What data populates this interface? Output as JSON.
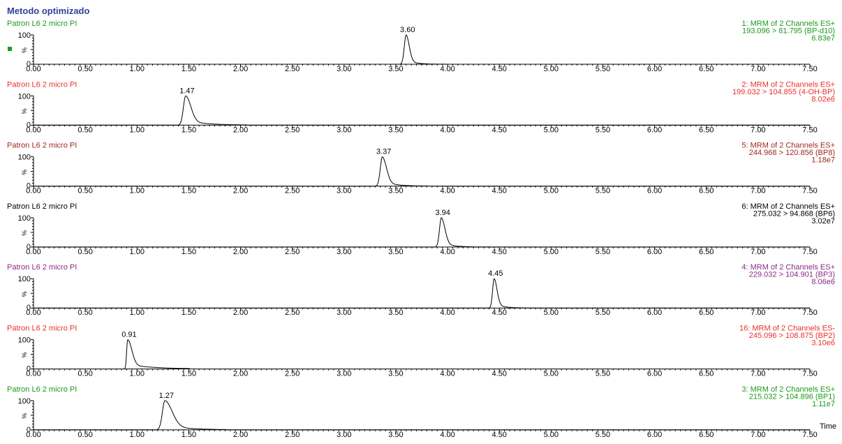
{
  "title": "Metodo optimizado",
  "colors": {
    "axis": "#000000",
    "trace": "#000000",
    "green": "#1a9a1a",
    "red": "#e8302a",
    "darkred": "#a0281e",
    "black": "#000000",
    "purple": "#8a2a86",
    "marker": "#1a9a1a"
  },
  "chart_data": {
    "type": "line",
    "x_axis": {
      "range": [
        0.0,
        7.5
      ],
      "ticks": [
        "0.00",
        "0.50",
        "1.00",
        "1.50",
        "2.00",
        "2.50",
        "3.00",
        "3.50",
        "4.00",
        "4.50",
        "5.00",
        "5.50",
        "6.00",
        "6.50",
        "7.00",
        "7.50"
      ],
      "label": "Time"
    },
    "y_axis": {
      "range": [
        0,
        100
      ],
      "top_label": "100",
      "bottom_label": "0",
      "unit": "%"
    },
    "panels": [
      {
        "sample": "Patron L6 2 micro PI",
        "color_key": "green",
        "marker": true,
        "info": [
          "1: MRM of 2 Channels ES+",
          "193.096 > 81.795 (BP-d10)",
          "6.83e7"
        ],
        "peak_rt": 3.6,
        "peak_label": "3.60",
        "sigma_left": 0.018,
        "sigma_right": 0.03,
        "tail": 0.08
      },
      {
        "sample": "Patron L6 2 micro PI",
        "color_key": "red",
        "info": [
          "2: MRM of 2 Channels ES+",
          "199.032 > 104.855 (4-OH-BP)",
          "8.02e6"
        ],
        "peak_rt": 1.47,
        "peak_label": "1.47",
        "sigma_left": 0.022,
        "sigma_right": 0.05,
        "tail": 0.2
      },
      {
        "sample": "Patron L6 2 micro PI",
        "color_key": "darkred",
        "info": [
          "5: MRM of 2 Channels ES+",
          "244.968 > 120.856 (BP8)",
          "1.18e7"
        ],
        "peak_rt": 3.37,
        "peak_label": "3.37",
        "sigma_left": 0.02,
        "sigma_right": 0.04,
        "tail": 0.12
      },
      {
        "sample": "Patron L6 2 micro PI",
        "color_key": "black",
        "info": [
          "6: MRM of 2 Channels ES+",
          "275.032 > 94.868 (BP6)",
          "3.02e7"
        ],
        "peak_rt": 3.94,
        "peak_label": "3.94",
        "sigma_left": 0.018,
        "sigma_right": 0.035,
        "tail": 0.1
      },
      {
        "sample": "Patron L6 2 micro PI",
        "color_key": "purple",
        "info": [
          "4: MRM of 2 Channels ES+",
          "229.032 > 104.901 (BP3)",
          "8.06e6"
        ],
        "peak_rt": 4.45,
        "peak_label": "4.45",
        "sigma_left": 0.015,
        "sigma_right": 0.028,
        "tail": 0.08
      },
      {
        "sample": "Patron L6 2 micro PI",
        "color_key": "red",
        "info": [
          "16: MRM of 2 Channels ES-",
          "245.096 > 108.875 (BP2)",
          "3.10e6"
        ],
        "peak_rt": 0.91,
        "peak_label": "0.91",
        "sigma_left": 0.01,
        "sigma_right": 0.04,
        "tail": 0.25
      },
      {
        "sample": "Patron L6 2 micro PI",
        "color_key": "green",
        "info": [
          "3: MRM of 2 Channels ES+",
          "215.032 > 104.896 (BP1)",
          "1.11e7"
        ],
        "peak_rt": 1.27,
        "peak_label": "1.27",
        "sigma_left": 0.025,
        "sigma_right": 0.07,
        "tail": 0.22
      }
    ]
  }
}
